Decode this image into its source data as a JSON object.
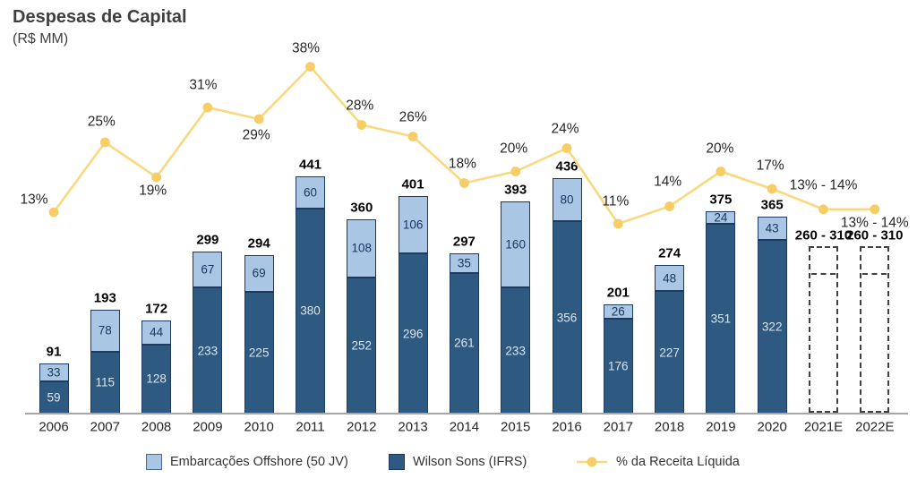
{
  "title": "Despesas de Capital",
  "subtitle": "(R$ MM)",
  "colors": {
    "offshore_fill": "#A9C6E4",
    "wilson_fill": "#2E5980",
    "bar_border": "#1F3A5F",
    "line_yellow": "#FAD880",
    "marker_yellow": "#F7CD68",
    "axis_gray": "#A6A6A6",
    "estimate_outline": "#404040"
  },
  "legend": [
    {
      "label": "Embarcações Offshore (50 JV)"
    },
    {
      "label": "Wilson Sons (IFRS)"
    },
    {
      "label": "% da Receita Líquida"
    }
  ],
  "chart_data": {
    "type": "bar",
    "subtype": "stacked-bar-with-percent-line",
    "title": "Despesas de Capital (R$ MM)",
    "categories": [
      "2006",
      "2007",
      "2008",
      "2009",
      "2010",
      "2011",
      "2012",
      "2013",
      "2014",
      "2015",
      "2016",
      "2017",
      "2018",
      "2019",
      "2020",
      "2021E",
      "2022E"
    ],
    "series": [
      {
        "name": "Wilson Sons (IFRS)",
        "color": "#2E5980",
        "values": [
          59,
          115,
          128,
          233,
          225,
          380,
          252,
          296,
          261,
          233,
          356,
          176,
          227,
          351,
          322,
          null,
          null
        ]
      },
      {
        "name": "Embarcações Offshore (50 JV)",
        "color": "#A9C6E4",
        "values": [
          33,
          78,
          44,
          67,
          69,
          60,
          108,
          106,
          35,
          160,
          80,
          26,
          48,
          24,
          43,
          null,
          null
        ]
      }
    ],
    "totals": [
      "91",
      "193",
      "172",
      "299",
      "294",
      "441",
      "360",
      "401",
      "297",
      "393",
      "436",
      "201",
      "274",
      "375",
      "365",
      "260 - 310",
      "260 - 310"
    ],
    "line": {
      "name": "% da Receita Líquida",
      "values": [
        13,
        25,
        19,
        31,
        29,
        38,
        28,
        26,
        18,
        20,
        24,
        11,
        14,
        20,
        17,
        13.5,
        13.5
      ],
      "labels": [
        "13%",
        "25%",
        "19%",
        "31%",
        "29%",
        "38%",
        "28%",
        "26%",
        "18%",
        "20%",
        "24%",
        "11%",
        "14%",
        "20%",
        "17%",
        "13% - 14%",
        "13% - 14%"
      ]
    },
    "estimate": {
      "indices": [
        15,
        16
      ],
      "min": 260,
      "max": 310,
      "label": "260 - 310"
    },
    "ylim": [
      0,
      480
    ],
    "grid": false,
    "legend_position": "bottom"
  }
}
